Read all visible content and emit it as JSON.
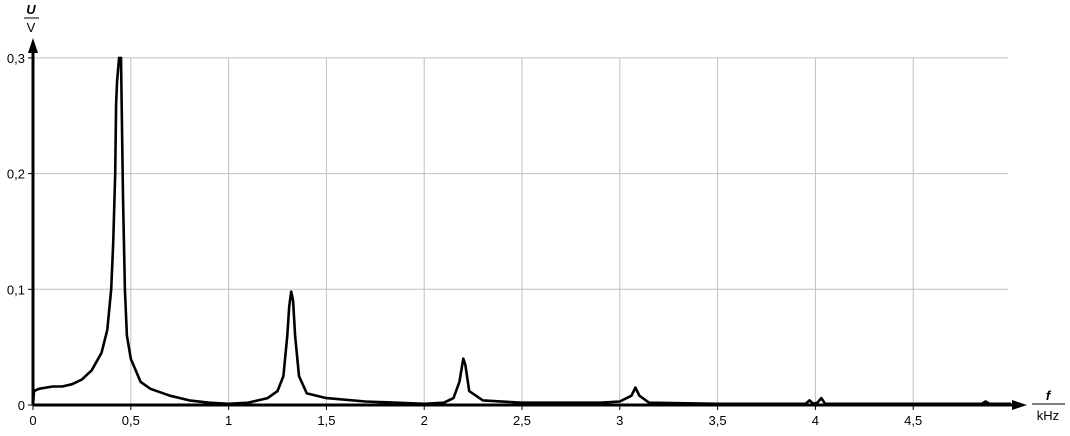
{
  "chart_data": {
    "type": "line",
    "title": "",
    "xlabel": {
      "symbol": "f",
      "unit": "kHz"
    },
    "ylabel": {
      "symbol": "U",
      "unit": "V"
    },
    "xlim": [
      0,
      5
    ],
    "ylim": [
      0,
      0.3
    ],
    "grid": true,
    "x_ticks": [
      0,
      0.5,
      1,
      1.5,
      2,
      2.5,
      3,
      3.5,
      4,
      4.5
    ],
    "x_tick_labels": [
      "0",
      "0,5",
      "1",
      "1,5",
      "2",
      "2,5",
      "3",
      "3,5",
      "4",
      "4,5"
    ],
    "y_ticks": [
      0,
      0.1,
      0.2,
      0.3
    ],
    "y_tick_labels": [
      "0",
      "0,1",
      "0,2",
      "0,3"
    ],
    "line_color": "#000000",
    "grid_color": "#c0c0c0",
    "series": [
      {
        "x": [
          0,
          0.005,
          0.03,
          0.1,
          0.15,
          0.2,
          0.25,
          0.3,
          0.35,
          0.38,
          0.4,
          0.41,
          0.42,
          0.425,
          0.43,
          0.44,
          0.45,
          0.455,
          0.46,
          0.47,
          0.48,
          0.5,
          0.55,
          0.6,
          0.7,
          0.8,
          0.9,
          1.0,
          1.1,
          1.2,
          1.25,
          1.28,
          1.3,
          1.31,
          1.32,
          1.33,
          1.34,
          1.36,
          1.4,
          1.5,
          1.7,
          2.0,
          2.1,
          2.15,
          2.18,
          2.2,
          2.21,
          2.23,
          2.3,
          2.5,
          2.9,
          3.0,
          3.06,
          3.08,
          3.1,
          3.15,
          3.5,
          3.95,
          3.97,
          3.99,
          4.01,
          4.03,
          4.05,
          4.85,
          4.87,
          4.89,
          5.0
        ],
        "y": [
          0,
          0.012,
          0.014,
          0.016,
          0.016,
          0.018,
          0.022,
          0.03,
          0.045,
          0.065,
          0.1,
          0.14,
          0.2,
          0.26,
          0.28,
          0.3,
          0.3,
          0.24,
          0.18,
          0.1,
          0.06,
          0.04,
          0.02,
          0.014,
          0.008,
          0.004,
          0.002,
          0.001,
          0.002,
          0.006,
          0.012,
          0.025,
          0.06,
          0.085,
          0.098,
          0.09,
          0.06,
          0.025,
          0.01,
          0.006,
          0.003,
          0.001,
          0.002,
          0.006,
          0.02,
          0.04,
          0.035,
          0.012,
          0.004,
          0.002,
          0.002,
          0.003,
          0.008,
          0.015,
          0.008,
          0.002,
          0.001,
          0.001,
          0.004,
          0.001,
          0.002,
          0.006,
          0.001,
          0.001,
          0.003,
          0.001,
          0.001
        ]
      }
    ]
  }
}
